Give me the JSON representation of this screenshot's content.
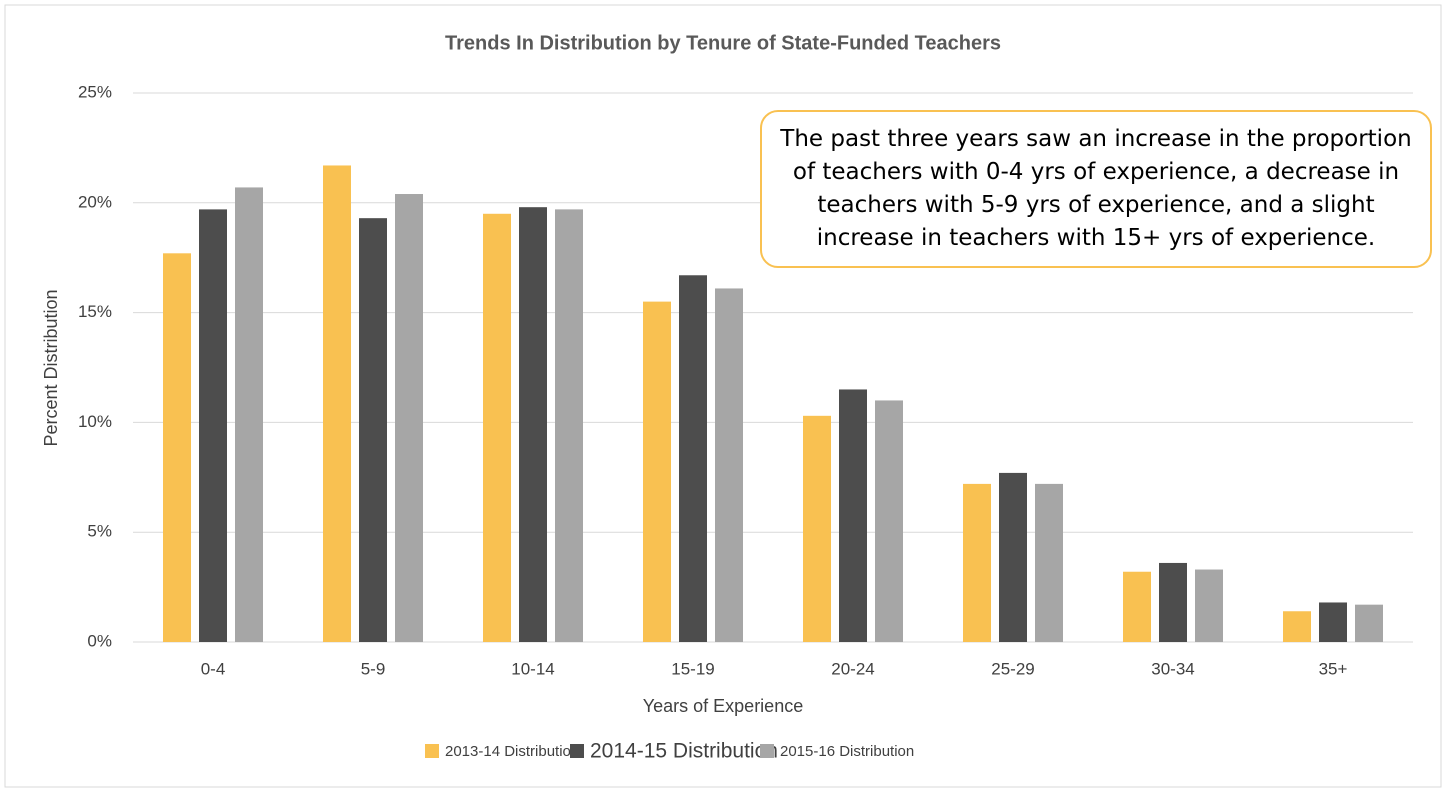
{
  "chart_data": {
    "type": "bar",
    "title": "Trends In Distribution by Tenure of State-Funded Teachers",
    "x_label": "Years of Experience",
    "y_label": "Percent Distribution",
    "annotation": "The past three years saw an increase in the proportion of teachers with 0-4 yrs of experience, a decrease in teachers with 5-9 yrs of experience, and a slight increase in teachers with 15+ yrs of experience.",
    "categories": [
      "0-4",
      "5-9",
      "10-14",
      "15-19",
      "20-24",
      "25-29",
      "30-34",
      "35+"
    ],
    "series": [
      {
        "name": "2013-14 Distribution",
        "color": "#f9c151",
        "values": [
          17.7,
          21.7,
          19.5,
          15.5,
          10.3,
          7.2,
          3.2,
          1.4
        ]
      },
      {
        "name": "2014-15 Distribution",
        "color": "#4d4d4d",
        "values": [
          19.7,
          19.3,
          19.8,
          16.7,
          11.5,
          7.7,
          3.6,
          1.8
        ]
      },
      {
        "name": "2015-16 Distribution",
        "color": "#a6a6a6",
        "values": [
          20.7,
          20.4,
          19.7,
          16.1,
          11.0,
          7.2,
          3.3,
          1.7
        ]
      }
    ],
    "ylim": [
      0,
      25
    ],
    "yticks": [
      {
        "value": 0,
        "label": "0%"
      },
      {
        "value": 5,
        "label": "5%"
      },
      {
        "value": 10,
        "label": "10%"
      },
      {
        "value": 15,
        "label": "15%"
      },
      {
        "value": 20,
        "label": "20%"
      },
      {
        "value": 25,
        "label": "25%"
      }
    ],
    "grid": true,
    "legend": "bottom"
  }
}
